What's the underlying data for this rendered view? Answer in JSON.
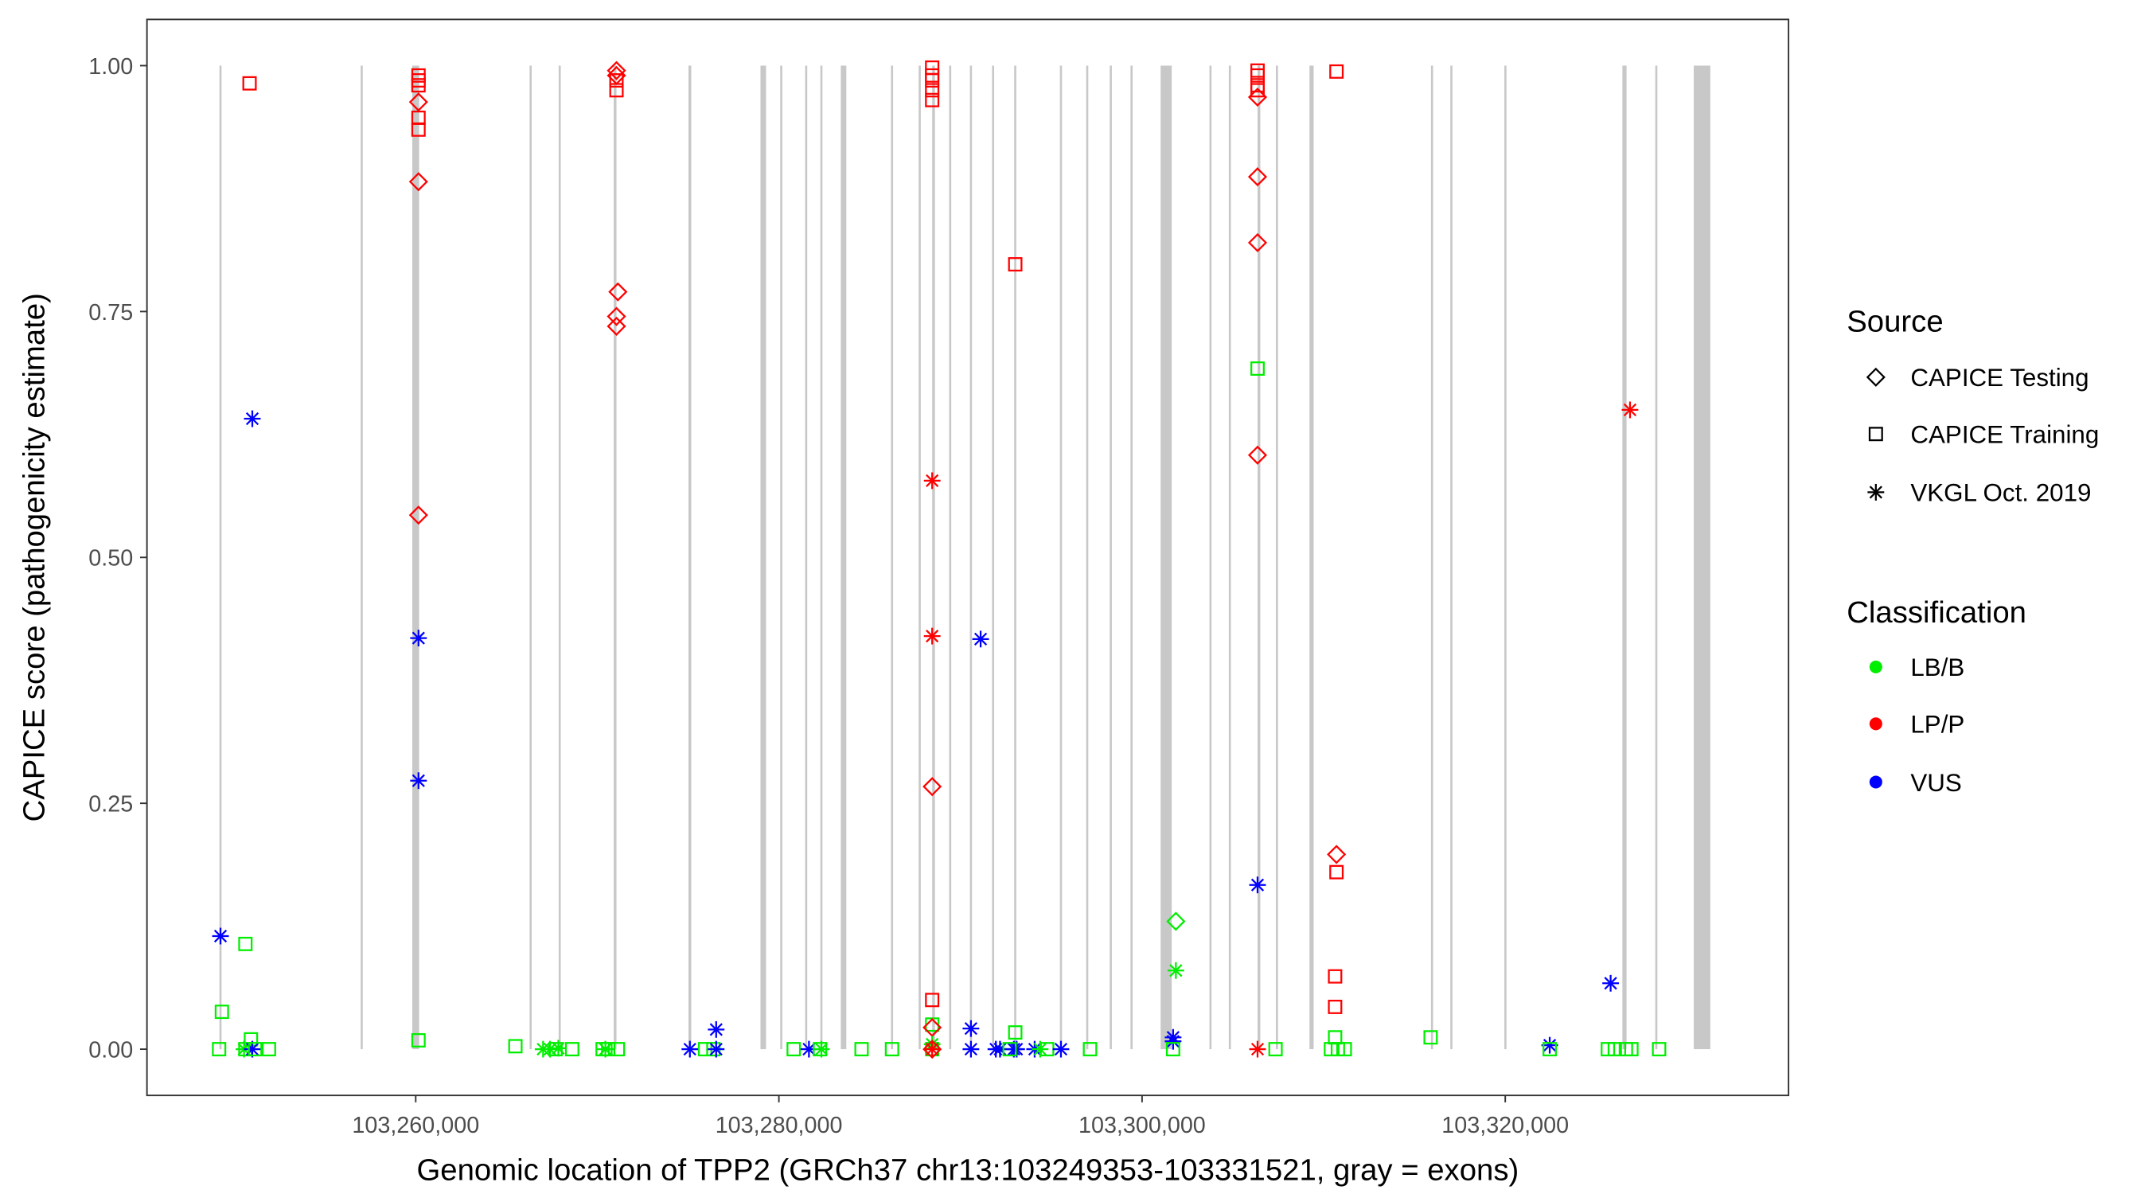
{
  "chart_data": {
    "type": "scatter",
    "xlabel": "Genomic location of TPP2 (GRCh37 chr13:103249353-103331521, gray = exons)",
    "ylabel": "CAPICE score (pathogenicity estimate)",
    "xlim": [
      103245200,
      103335600
    ],
    "ylim": [
      -0.047,
      1.047
    ],
    "x_ticks": [
      103260000,
      103280000,
      103300000,
      103320000
    ],
    "x_tick_labels": [
      "103,260,000",
      "103,280,000",
      "103,300,000",
      "103,320,000"
    ],
    "y_ticks": [
      0,
      0.25,
      0.5,
      0.75,
      1.0
    ],
    "y_tick_labels": [
      "0.00",
      "0.25",
      "0.50",
      "0.75",
      "1.00"
    ],
    "grid": false,
    "colors": {
      "LB/B": "#00ee00",
      "LP/P": "#ff0000",
      "VUS": "#0000ff",
      "exon": "#c8c8c8"
    },
    "exons_bp": [
      [
        103249249,
        115
      ],
      [
        103257026,
        115
      ],
      [
        103260000,
        380
      ],
      [
        103266329,
        115
      ],
      [
        103267930,
        115
      ],
      [
        103270980,
        150
      ],
      [
        103275098,
        150
      ],
      [
        103279139,
        305
      ],
      [
        103280130,
        115
      ],
      [
        103281503,
        115
      ],
      [
        103282341,
        115
      ],
      [
        103283561,
        305
      ],
      [
        103286230,
        115
      ],
      [
        103287755,
        115
      ],
      [
        103288518,
        150
      ],
      [
        103289433,
        115
      ],
      [
        103290576,
        115
      ],
      [
        103291796,
        115
      ],
      [
        103293016,
        115
      ],
      [
        103295533,
        115
      ],
      [
        103296981,
        115
      ],
      [
        103298278,
        115
      ],
      [
        103299421,
        115
      ],
      [
        103301328,
        610
      ],
      [
        103303768,
        115
      ],
      [
        103304835,
        115
      ],
      [
        103306436,
        150
      ],
      [
        103307428,
        115
      ],
      [
        103309334,
        230
      ],
      [
        103315968,
        115
      ],
      [
        103317035,
        115
      ],
      [
        103320009,
        115
      ],
      [
        103326566,
        230
      ],
      [
        103328320,
        115
      ],
      [
        103330836,
        915
      ]
    ],
    "points": [
      [
        103249249,
        0.115,
        "vkgl",
        "VUS"
      ],
      [
        103249325,
        0.038,
        "train",
        "LB/B"
      ],
      [
        103249172,
        0.0,
        "train",
        "LB/B"
      ],
      [
        103250621,
        0.107,
        "train",
        "LB/B"
      ],
      [
        103251002,
        0.641,
        "vkgl",
        "VUS"
      ],
      [
        103250850,
        0.982,
        "train",
        "LP/P"
      ],
      [
        103250926,
        0.01,
        "train",
        "LB/B"
      ],
      [
        103250621,
        0.0,
        "train",
        "LB/B"
      ],
      [
        103250545,
        0.0,
        "vkgl",
        "LB/B"
      ],
      [
        103251002,
        0.0,
        "vkgl",
        "VUS"
      ],
      [
        103251155,
        0.0,
        "train",
        "LB/B"
      ],
      [
        103251918,
        0.0,
        "train",
        "LB/B"
      ],
      [
        103260153,
        0.99,
        "train",
        "LP/P"
      ],
      [
        103260153,
        0.985,
        "train",
        "LP/P"
      ],
      [
        103260153,
        0.98,
        "train",
        "LP/P"
      ],
      [
        103260153,
        0.947,
        "train",
        "LP/P"
      ],
      [
        103260153,
        0.935,
        "train",
        "LP/P"
      ],
      [
        103260153,
        0.963,
        "test",
        "LP/P"
      ],
      [
        103260153,
        0.882,
        "test",
        "LP/P"
      ],
      [
        103260153,
        0.543,
        "test",
        "LP/P"
      ],
      [
        103260153,
        0.418,
        "vkgl",
        "VUS"
      ],
      [
        103260153,
        0.273,
        "vkgl",
        "VUS"
      ],
      [
        103260153,
        0.009,
        "train",
        "LB/B"
      ],
      [
        103265490,
        0.003,
        "train",
        "LB/B"
      ],
      [
        103267015,
        0.0,
        "vkgl",
        "LB/B"
      ],
      [
        103267396,
        0.0,
        "vkgl",
        "LB/B"
      ],
      [
        103267701,
        0.0,
        "train",
        "LB/B"
      ],
      [
        103267854,
        0.001,
        "vkgl",
        "LB/B"
      ],
      [
        103268616,
        0.0,
        "train",
        "LB/B"
      ],
      [
        103270294,
        0.0,
        "train",
        "LB/B"
      ],
      [
        103270599,
        0.0,
        "train",
        "LB/B"
      ],
      [
        103271133,
        0.0,
        "train",
        "LB/B"
      ],
      [
        103270446,
        0.0,
        "vkgl",
        "LB/B"
      ],
      [
        103271056,
        0.995,
        "test",
        "LP/P"
      ],
      [
        103271056,
        0.99,
        "test",
        "LP/P"
      ],
      [
        103271056,
        0.985,
        "train",
        "LP/P"
      ],
      [
        103271056,
        0.975,
        "train",
        "LP/P"
      ],
      [
        103271133,
        0.77,
        "test",
        "LP/P"
      ],
      [
        103271056,
        0.745,
        "test",
        "LP/P"
      ],
      [
        103271056,
        0.735,
        "test",
        "LP/P"
      ],
      [
        103275098,
        0.0,
        "vkgl",
        "VUS"
      ],
      [
        103275936,
        0.0,
        "train",
        "LB/B"
      ],
      [
        103276394,
        0.0,
        "train",
        "LB/B"
      ],
      [
        103276546,
        0.02,
        "vkgl",
        "VUS"
      ],
      [
        103276546,
        0.0,
        "vkgl",
        "VUS"
      ],
      [
        103280816,
        0.0,
        "train",
        "LB/B"
      ],
      [
        103281655,
        0.0,
        "vkgl",
        "VUS"
      ],
      [
        103282265,
        0.0,
        "train",
        "LB/B"
      ],
      [
        103282341,
        0.0,
        "vkgl",
        "LB/B"
      ],
      [
        103284553,
        0.0,
        "train",
        "LB/B"
      ],
      [
        103286230,
        0.0,
        "train",
        "LB/B"
      ],
      [
        103288441,
        0.998,
        "train",
        "LP/P"
      ],
      [
        103288441,
        0.99,
        "train",
        "LP/P"
      ],
      [
        103288441,
        0.985,
        "train",
        "LP/P"
      ],
      [
        103288441,
        0.975,
        "train",
        "LP/P"
      ],
      [
        103288441,
        0.965,
        "train",
        "LP/P"
      ],
      [
        103288441,
        0.578,
        "vkgl",
        "LP/P"
      ],
      [
        103288441,
        0.42,
        "vkgl",
        "LP/P"
      ],
      [
        103288441,
        0.267,
        "test",
        "LP/P"
      ],
      [
        103288441,
        0.05,
        "train",
        "LP/P"
      ],
      [
        103288441,
        0.025,
        "train",
        "LB/B"
      ],
      [
        103288441,
        0.022,
        "test",
        "LP/P"
      ],
      [
        103288441,
        0.005,
        "vkgl",
        "LB/B"
      ],
      [
        103288441,
        0.0,
        "train",
        "LB/B"
      ],
      [
        103288441,
        0.0,
        "test",
        "LP/P"
      ],
      [
        103288441,
        0.0,
        "vkgl",
        "LP/P"
      ],
      [
        103290576,
        0.021,
        "vkgl",
        "VUS"
      ],
      [
        103290576,
        0.0,
        "vkgl",
        "VUS"
      ],
      [
        103291110,
        0.417,
        "vkgl",
        "VUS"
      ],
      [
        103291949,
        0.0,
        "vkgl",
        "VUS"
      ],
      [
        103292178,
        0.0,
        "vkgl",
        "VUS"
      ],
      [
        103292940,
        0.0,
        "vkgl",
        "VUS"
      ],
      [
        103293093,
        0.0,
        "vkgl",
        "VUS"
      ],
      [
        103293016,
        0.017,
        "train",
        "LB/B"
      ],
      [
        103292711,
        0.0,
        "train",
        "LB/B"
      ],
      [
        103293016,
        0.798,
        "train",
        "LP/P"
      ],
      [
        103294084,
        0.0,
        "vkgl",
        "VUS"
      ],
      [
        103294389,
        0.0,
        "vkgl",
        "LB/B"
      ],
      [
        103294770,
        0.0,
        "train",
        "LB/B"
      ],
      [
        103295533,
        0.0,
        "vkgl",
        "VUS"
      ],
      [
        103297134,
        0.0,
        "train",
        "LB/B"
      ],
      [
        103301709,
        0.012,
        "vkgl",
        "VUS"
      ],
      [
        103301709,
        0.008,
        "vkgl",
        "VUS"
      ],
      [
        103301709,
        0.0,
        "train",
        "LB/B"
      ],
      [
        103301861,
        0.13,
        "test",
        "LB/B"
      ],
      [
        103301861,
        0.08,
        "vkgl",
        "LB/B"
      ],
      [
        103306360,
        0.995,
        "train",
        "LP/P"
      ],
      [
        103306360,
        0.99,
        "train",
        "LP/P"
      ],
      [
        103306360,
        0.98,
        "train",
        "LP/P"
      ],
      [
        103306360,
        0.975,
        "train",
        "LP/P"
      ],
      [
        103306360,
        0.968,
        "test",
        "LP/P"
      ],
      [
        103306360,
        0.887,
        "test",
        "LP/P"
      ],
      [
        103306360,
        0.82,
        "test",
        "LP/P"
      ],
      [
        103306360,
        0.604,
        "test",
        "LP/P"
      ],
      [
        103306360,
        0.692,
        "train",
        "LB/B"
      ],
      [
        103306360,
        0.167,
        "vkgl",
        "VUS"
      ],
      [
        103306360,
        0.0,
        "vkgl",
        "LP/P"
      ],
      [
        103307351,
        0.0,
        "train",
        "LB/B"
      ],
      [
        103310706,
        0.994,
        "train",
        "LP/P"
      ],
      [
        103310706,
        0.198,
        "test",
        "LP/P"
      ],
      [
        103310706,
        0.18,
        "train",
        "LP/P"
      ],
      [
        103310630,
        0.074,
        "train",
        "LP/P"
      ],
      [
        103310630,
        0.043,
        "train",
        "LP/P"
      ],
      [
        103310630,
        0.012,
        "train",
        "LB/B"
      ],
      [
        103310401,
        0.0,
        "train",
        "LB/B"
      ],
      [
        103310783,
        0.0,
        "train",
        "LB/B"
      ],
      [
        103311164,
        0.0,
        "train",
        "LB/B"
      ],
      [
        103315891,
        0.012,
        "train",
        "LB/B"
      ],
      [
        103322449,
        0.004,
        "vkgl",
        "VUS"
      ],
      [
        103322449,
        0.0,
        "train",
        "LB/B"
      ],
      [
        103325804,
        0.067,
        "vkgl",
        "VUS"
      ],
      [
        103325651,
        0.0,
        "train",
        "LB/B"
      ],
      [
        103326033,
        0.0,
        "train",
        "LB/B"
      ],
      [
        103326643,
        0.0,
        "train",
        "LB/B"
      ],
      [
        103326948,
        0.0,
        "train",
        "LB/B"
      ],
      [
        103326871,
        0.65,
        "vkgl",
        "LP/P"
      ],
      [
        103328473,
        0.0,
        "train",
        "LB/B"
      ]
    ],
    "legend": {
      "placement": "right",
      "source_title": "Source",
      "source_items": [
        {
          "key": "test",
          "label": "CAPICE Testing",
          "shape": "diamond"
        },
        {
          "key": "train",
          "label": "CAPICE Training",
          "shape": "square"
        },
        {
          "key": "vkgl",
          "label": "VKGL Oct. 2019",
          "shape": "asterisk"
        }
      ],
      "class_title": "Classification",
      "class_items": [
        {
          "key": "LB/B",
          "label": "LB/B"
        },
        {
          "key": "LP/P",
          "label": "LP/P"
        },
        {
          "key": "VUS",
          "label": "VUS"
        }
      ]
    }
  }
}
